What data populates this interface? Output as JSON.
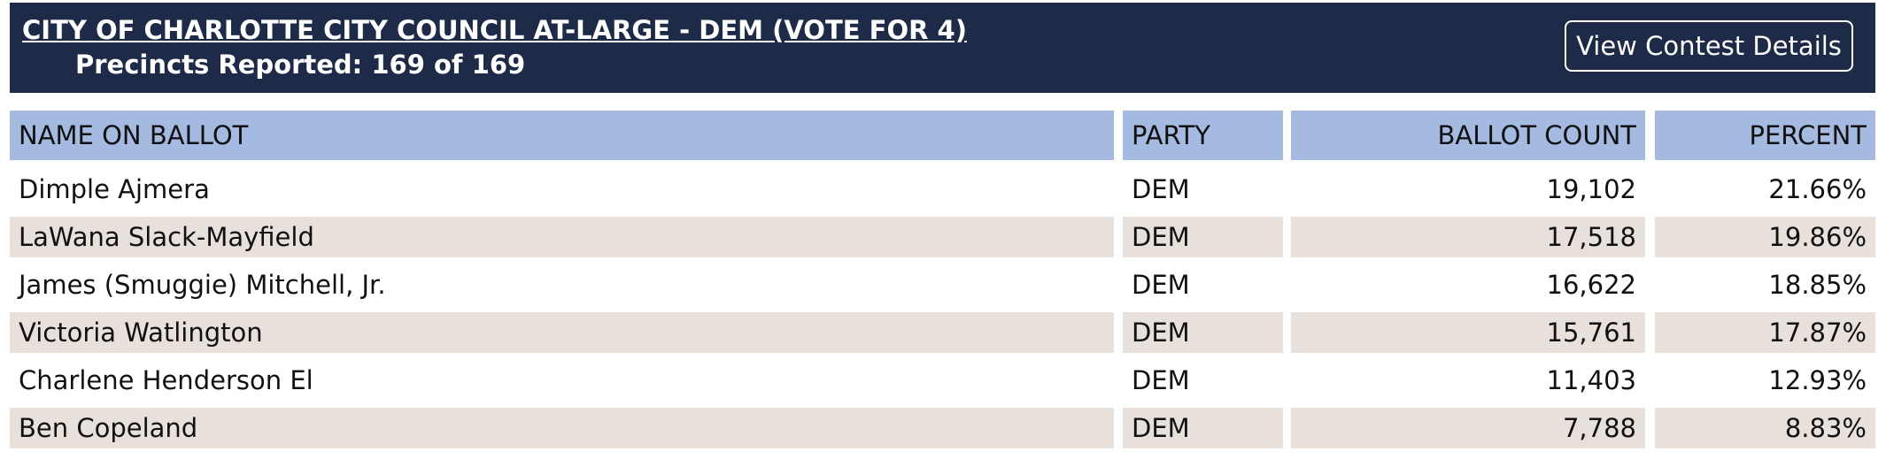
{
  "header": {
    "title": "CITY OF CHARLOTTE CITY COUNCIL AT-LARGE - DEM (VOTE FOR 4)",
    "precincts": "Precincts Reported: 169 of 169",
    "button": "View Contest Details"
  },
  "table": {
    "columns": [
      "NAME ON BALLOT",
      "PARTY",
      "BALLOT COUNT",
      "PERCENT"
    ],
    "rows": [
      [
        "Dimple Ajmera",
        "DEM",
        "19,102",
        "21.66%"
      ],
      [
        "LaWana Slack-Mayfield",
        "DEM",
        "17,518",
        "19.86%"
      ],
      [
        "James (Smuggie) Mitchell, Jr.",
        "DEM",
        "16,622",
        "18.85%"
      ],
      [
        "Victoria Watlington",
        "DEM",
        "15,761",
        "17.87%"
      ],
      [
        "Charlene Henderson El",
        "DEM",
        "11,403",
        "12.93%"
      ],
      [
        "Ben Copeland",
        "DEM",
        "7,788",
        "8.83%"
      ]
    ]
  }
}
